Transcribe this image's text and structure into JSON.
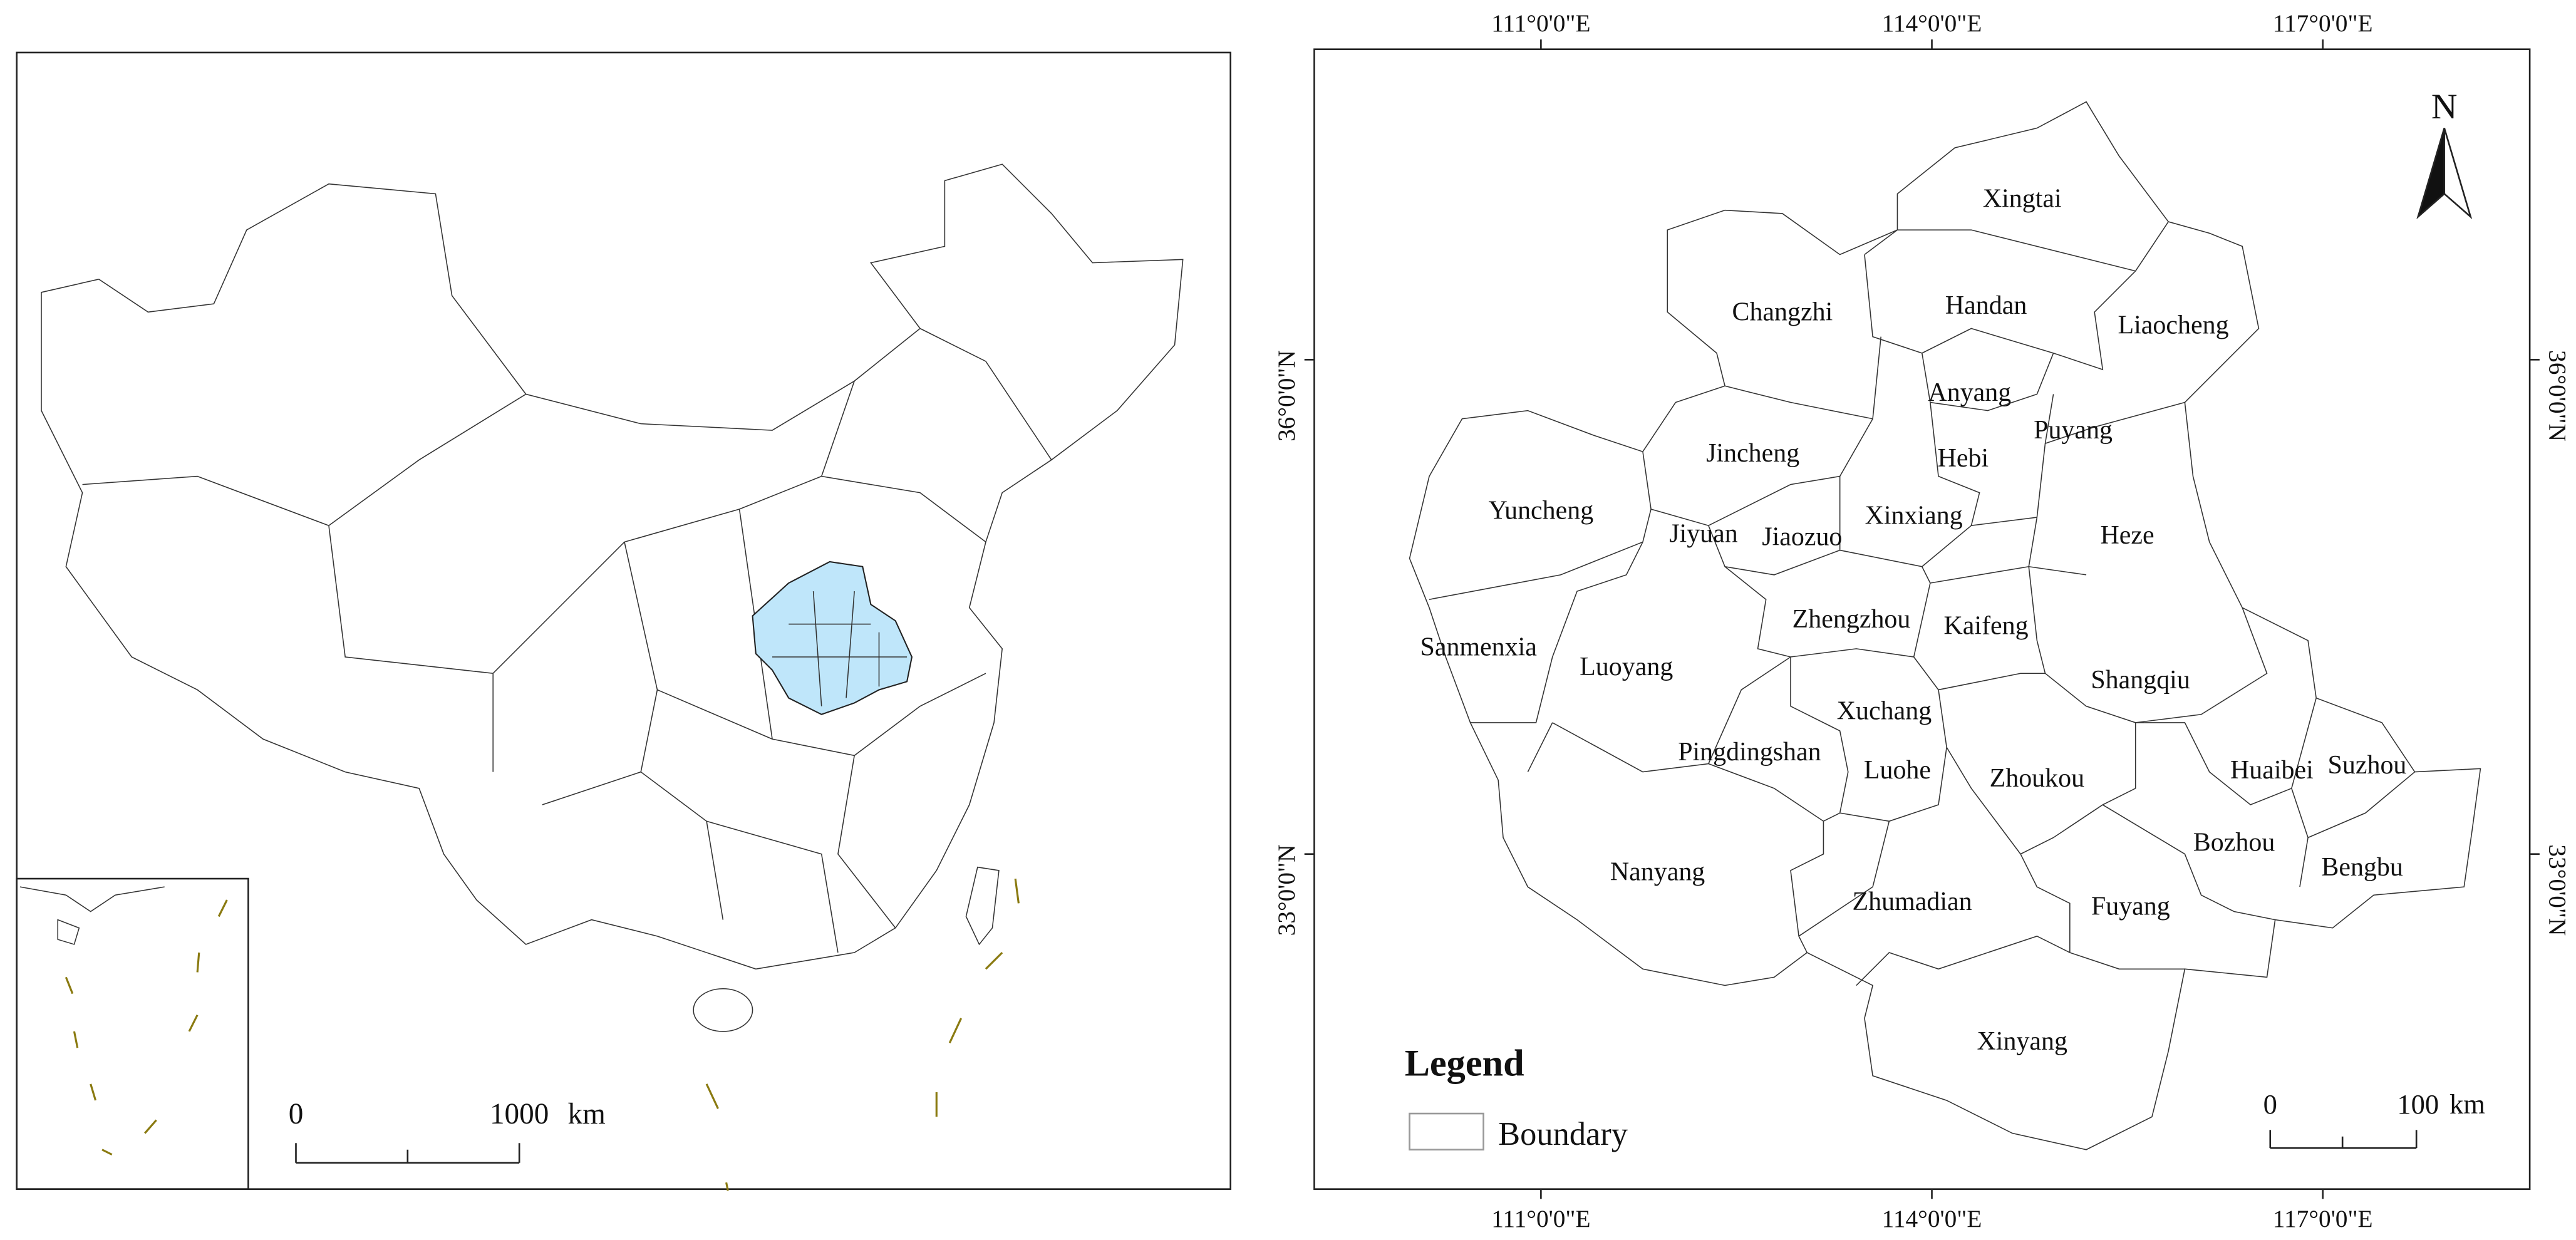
{
  "left_map": {
    "scale_bar": {
      "start": "0",
      "end": "1000",
      "unit": "km"
    }
  },
  "right_map": {
    "top_axis": [
      "111°0'0\"E",
      "114°0'0\"E",
      "117°0'0\"E"
    ],
    "bottom_axis": [
      "111°0'0\"E",
      "114°0'0\"E",
      "117°0'0\"E"
    ],
    "left_axis": [
      "36°0'0\"N",
      "33°0'0\"N"
    ],
    "right_axis": [
      "36°0'0\"N",
      "33°0'0\"N"
    ],
    "north": "N",
    "legend": {
      "title": "Legend",
      "item": "Boundary"
    },
    "scale_bar": {
      "start": "0",
      "end": "100",
      "unit": "km"
    },
    "regions": [
      "Xingtai",
      "Changzhi",
      "Handan",
      "Liaocheng",
      "Anyang",
      "Puyang",
      "Hebi",
      "Jincheng",
      "Yuncheng",
      "Jiyuan",
      "Jiaozuo",
      "Xinxiang",
      "Heze",
      "Zhengzhou",
      "Kaifeng",
      "Sanmenxia",
      "Luoyang",
      "Shangqiu",
      "Xuchang",
      "Pingdingshan",
      "Luohe",
      "Zhoukou",
      "Huaibei",
      "Suzhou",
      "Bozhou",
      "Bengbu",
      "Nanyang",
      "Zhumadian",
      "Fuyang",
      "Xinyang"
    ]
  }
}
